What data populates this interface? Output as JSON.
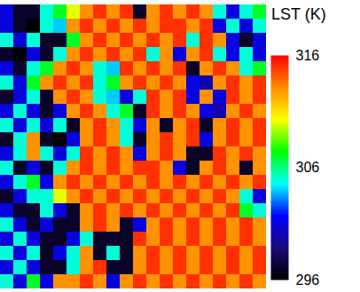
{
  "chart_data": {
    "type": "heatmap",
    "title": "LST (K)",
    "tick_labels": false,
    "colorbar": {
      "range": [
        296,
        316
      ],
      "ticks": [
        296,
        306,
        316
      ]
    },
    "cells": [
      [
        301,
        297,
        297,
        305,
        307,
        310,
        313,
        315,
        313,
        315,
        297,
        313,
        315,
        313,
        315,
        313,
        305,
        301,
        305,
        307
      ],
      [
        301,
        297,
        296,
        305,
        304,
        313,
        315,
        313,
        315,
        313,
        315,
        313,
        315,
        315,
        313,
        315,
        301,
        305,
        301,
        305
      ],
      [
        305,
        301,
        305,
        297,
        297,
        307,
        313,
        315,
        313,
        315,
        313,
        315,
        313,
        315,
        305,
        315,
        313,
        301,
        297,
        301
      ],
      [
        297,
        296,
        301,
        297,
        305,
        313,
        315,
        313,
        315,
        313,
        315,
        305,
        313,
        301,
        313,
        315,
        305,
        301,
        305,
        301
      ],
      [
        301,
        297,
        305,
        307,
        313,
        315,
        313,
        305,
        304,
        315,
        313,
        315,
        313,
        315,
        297,
        313,
        315,
        313,
        305,
        307
      ],
      [
        305,
        301,
        307,
        313,
        315,
        313,
        315,
        305,
        307,
        313,
        315,
        313,
        315,
        313,
        301,
        300,
        313,
        315,
        313,
        315
      ],
      [
        297,
        301,
        305,
        297,
        313,
        315,
        313,
        305,
        304,
        301,
        305,
        315,
        313,
        315,
        301,
        313,
        301,
        315,
        313,
        315
      ],
      [
        301,
        305,
        301,
        297,
        301,
        313,
        315,
        313,
        305,
        307,
        297,
        315,
        313,
        315,
        313,
        301,
        300,
        313,
        315,
        313
      ],
      [
        305,
        301,
        305,
        301,
        305,
        297,
        313,
        315,
        313,
        305,
        301,
        313,
        297,
        313,
        315,
        297,
        313,
        315,
        313,
        315
      ],
      [
        297,
        305,
        313,
        297,
        296,
        301,
        313,
        315,
        313,
        305,
        297,
        313,
        315,
        313,
        315,
        301,
        313,
        315,
        313,
        315
      ],
      [
        301,
        305,
        313,
        305,
        301,
        305,
        315,
        313,
        315,
        313,
        301,
        313,
        315,
        313,
        297,
        297,
        315,
        313,
        315,
        313
      ],
      [
        305,
        297,
        301,
        297,
        305,
        313,
        315,
        313,
        315,
        313,
        315,
        315,
        313,
        301,
        297,
        313,
        315,
        313,
        297,
        313
      ],
      [
        301,
        305,
        307,
        301,
        313,
        315,
        313,
        315,
        313,
        315,
        313,
        315,
        313,
        315,
        313,
        315,
        313,
        315,
        313,
        315
      ],
      [
        297,
        301,
        305,
        305,
        310,
        313,
        315,
        313,
        315,
        313,
        315,
        313,
        315,
        313,
        315,
        313,
        315,
        313,
        305,
        301
      ],
      [
        301,
        297,
        297,
        305,
        301,
        297,
        313,
        315,
        313,
        315,
        313,
        315,
        313,
        315,
        313,
        315,
        313,
        315,
        307,
        305
      ],
      [
        305,
        301,
        297,
        301,
        297,
        297,
        313,
        315,
        313,
        297,
        301,
        313,
        315,
        313,
        315,
        313,
        315,
        313,
        315,
        313
      ],
      [
        301,
        305,
        301,
        297,
        297,
        301,
        305,
        297,
        297,
        297,
        315,
        313,
        315,
        313,
        315,
        313,
        315,
        313,
        315,
        313
      ],
      [
        305,
        301,
        305,
        297,
        301,
        305,
        313,
        297,
        305,
        297,
        313,
        315,
        313,
        315,
        313,
        315,
        313,
        315,
        313,
        315
      ],
      [
        301,
        305,
        301,
        297,
        297,
        305,
        313,
        315,
        297,
        297,
        313,
        315,
        313,
        315,
        313,
        315,
        313,
        315,
        313,
        315
      ],
      [
        305,
        301,
        307,
        301,
        313,
        313,
        315,
        313,
        301,
        313,
        315,
        313,
        315,
        313,
        315,
        313,
        315,
        313,
        315,
        313
      ]
    ]
  }
}
